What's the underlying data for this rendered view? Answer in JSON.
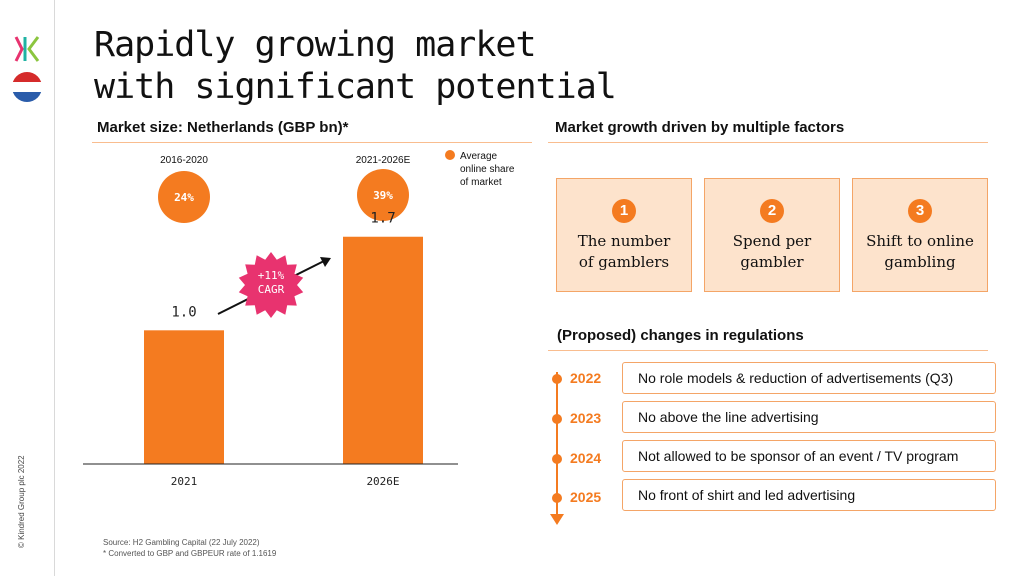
{
  "page": {
    "title_line1": "Rapidly growing market",
    "title_line2": "with significant potential",
    "copyright": "© Kindred Group plc 2022"
  },
  "left_section": {
    "heading": "Market size: Netherlands (GBP bn)*",
    "legend_label_lines": [
      "Average",
      "online share",
      "of market"
    ],
    "cagr_line1": "+11%",
    "cagr_line2": "CAGR",
    "source": "Source: H2 Gambling Capital (22 July 2022)",
    "footnote": "* Converted to GBP and GBPEUR rate of 1.1619"
  },
  "chart_data": {
    "type": "bar",
    "title": "Market size: Netherlands (GBP bn)*",
    "categories": [
      "2021",
      "2026E"
    ],
    "values": [
      1.0,
      1.7
    ],
    "value_labels": [
      "1.0",
      "1.7"
    ],
    "ylim": [
      0,
      1.9
    ],
    "period_labels": [
      "2016-2020",
      "2021-2026E"
    ],
    "online_share": [
      "24%",
      "39%"
    ],
    "legend": "Average online share of market",
    "bar_color": "#f47b20",
    "annotation": "+11% CAGR"
  },
  "right_section": {
    "factors_heading": "Market growth driven by multiple factors",
    "factors": [
      {
        "num": "1",
        "line1": "The number",
        "line2": "of gamblers"
      },
      {
        "num": "2",
        "line1": "Spend per",
        "line2": "gambler"
      },
      {
        "num": "3",
        "line1": "Shift to online",
        "line2": "gambling"
      }
    ],
    "regulations_heading": "(Proposed) changes in regulations",
    "regulations": [
      {
        "year": "2022",
        "text": "No role models & reduction of advertisements (Q3)"
      },
      {
        "year": "2023",
        "text": "No above the line advertising"
      },
      {
        "year": "2024",
        "text": "Not allowed to be sponsor of an event / TV program"
      },
      {
        "year": "2025",
        "text": "No front of shirt and led advertising"
      }
    ]
  },
  "colors": {
    "accent": "#f47b20",
    "factor_bg": "#fde3cc",
    "badge": "#e8336f"
  }
}
